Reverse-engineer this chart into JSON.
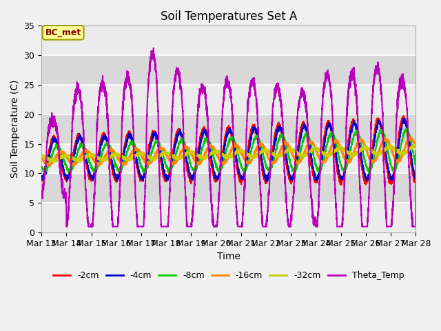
{
  "title": "Soil Temperatures Set A",
  "xlabel": "Time",
  "ylabel": "Soil Temperature (C)",
  "ylim": [
    0,
    35
  ],
  "annotation": "BC_met",
  "series": [
    "-2cm",
    "-4cm",
    "-8cm",
    "-16cm",
    "-32cm",
    "Theta_Temp"
  ],
  "colors": [
    "#ff0000",
    "#0000cc",
    "#00cc00",
    "#ff8800",
    "#cccc00",
    "#bb00bb"
  ],
  "linewidths": [
    1.5,
    1.5,
    1.5,
    2.0,
    2.5,
    1.5
  ],
  "xtick_labels": [
    "Mar 13",
    "Mar 14",
    "Mar 15",
    "Mar 16",
    "Mar 17",
    "Mar 18",
    "Mar 19",
    "Mar 20",
    "Mar 21",
    "Mar 22",
    "Mar 23",
    "Mar 24",
    "Mar 25",
    "Mar 26",
    "Mar 27",
    "Mar 28"
  ],
  "plot_bg_light": "#ebebeb",
  "plot_bg_dark": "#d8d8d8",
  "grid_color": "#ffffff",
  "fig_bg": "#f0f0f0"
}
